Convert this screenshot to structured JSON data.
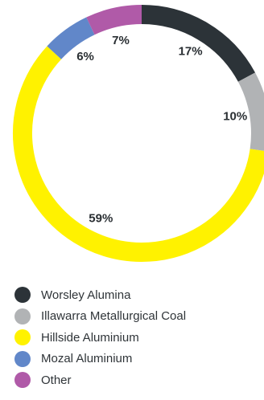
{
  "chart_data": {
    "type": "pie",
    "variant": "donut",
    "categories": [
      "Worsley Alumina",
      "Illawarra Metallurgical Coal",
      "Hillside Aluminium",
      "Mozal Aluminium",
      "Other"
    ],
    "values": [
      17,
      10,
      59,
      6,
      7
    ],
    "value_labels": [
      "17%",
      "10%",
      "59%",
      "6%",
      "7%"
    ],
    "colors": [
      "#2c3338",
      "#b1b3b5",
      "#fff200",
      "#6187c9",
      "#b05aa8"
    ],
    "legend_position": "bottom"
  }
}
